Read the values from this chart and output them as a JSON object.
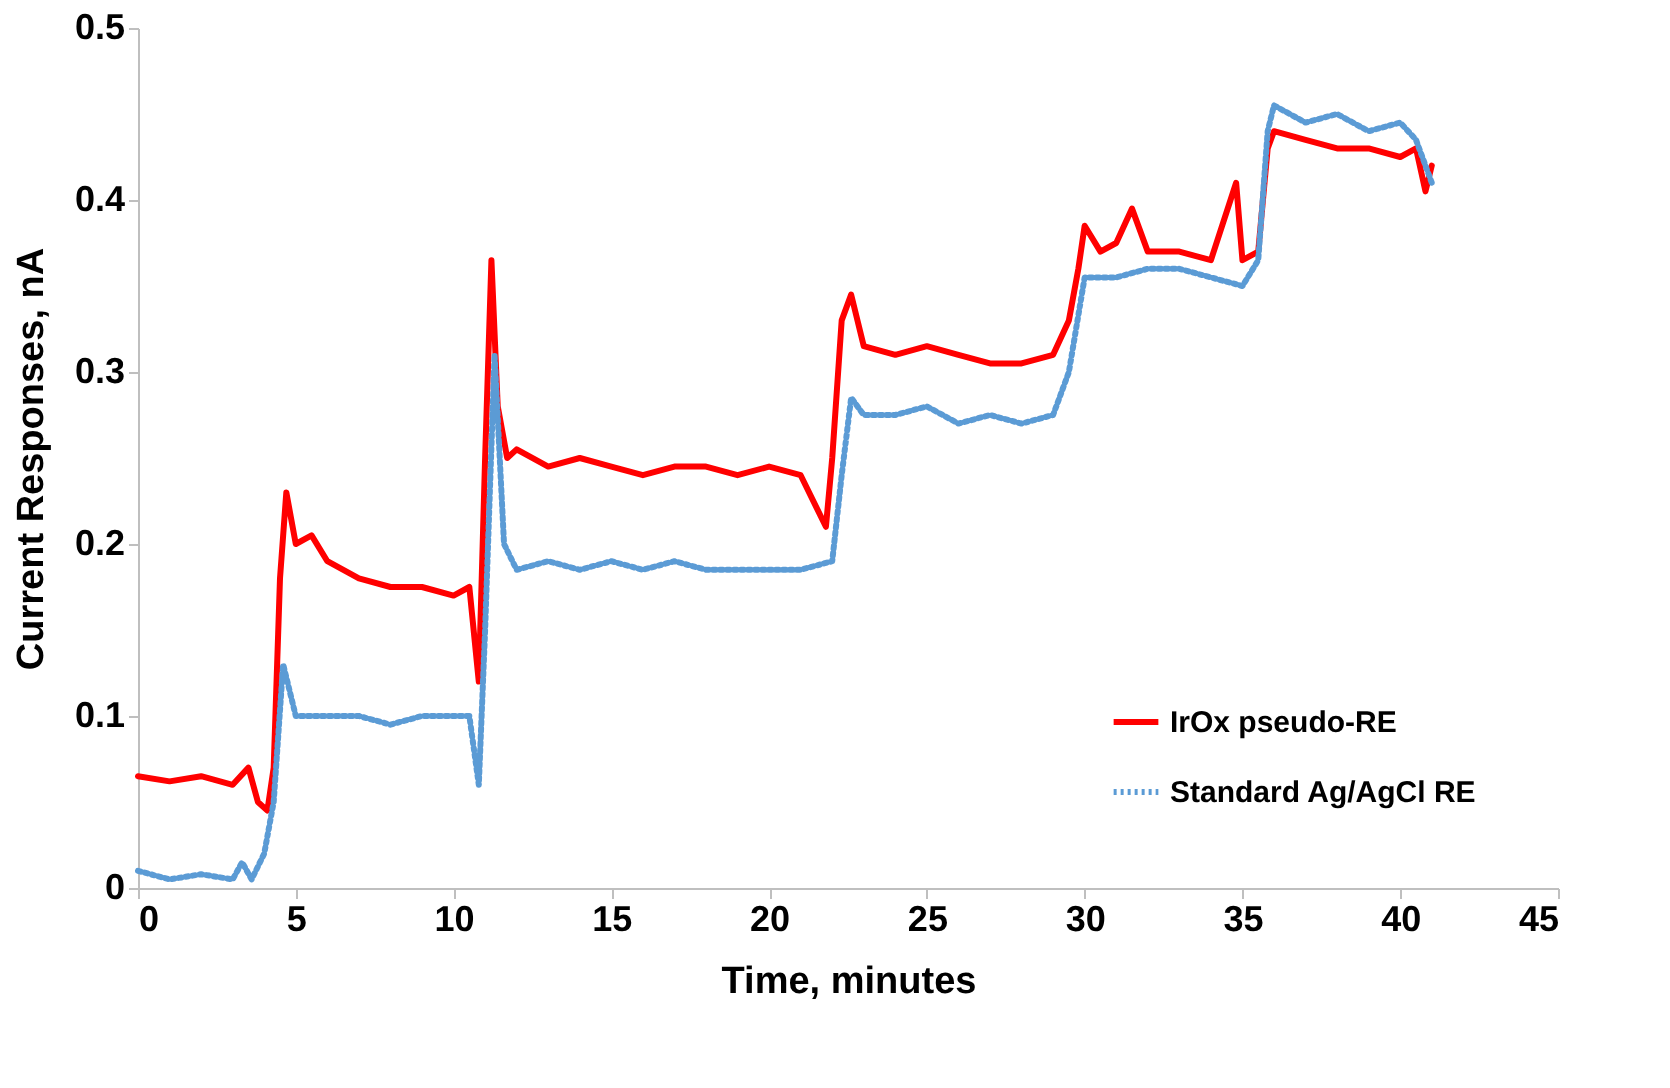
{
  "chart_data": {
    "type": "line",
    "xlabel": "Time, minutes",
    "ylabel": "Current Responses, nA",
    "xlim": [
      0,
      45
    ],
    "xticks": [
      0,
      5,
      10,
      15,
      20,
      25,
      30,
      35,
      40,
      45
    ],
    "ylim": [
      0,
      0.5
    ],
    "yticks": [
      0,
      0.1,
      0.2,
      0.3,
      0.4,
      0.5
    ],
    "grid": false,
    "legend": "bottom right",
    "marker": "none",
    "series": [
      {
        "name": "IrOx pseudo-RE",
        "color": "#ff0000",
        "line_style": "solid",
        "x": [
          0,
          1,
          2,
          3,
          3.5,
          3.8,
          4.1,
          4.3,
          4.5,
          4.7,
          5,
          5.5,
          6,
          7,
          8,
          9,
          10,
          10.5,
          10.8,
          11,
          11.2,
          11.4,
          11.7,
          12,
          13,
          14,
          15,
          16,
          17,
          18,
          19,
          20,
          21,
          21.8,
          22,
          22.3,
          22.6,
          23,
          24,
          25,
          26,
          27,
          28,
          29,
          29.5,
          29.8,
          30,
          30.5,
          31,
          31.5,
          32,
          33,
          34,
          34.8,
          35,
          35.5,
          35.8,
          36,
          37,
          38,
          39,
          40,
          40.5,
          40.8,
          41
        ],
        "values": [
          0.065,
          0.062,
          0.065,
          0.06,
          0.07,
          0.05,
          0.045,
          0.07,
          0.18,
          0.23,
          0.2,
          0.205,
          0.19,
          0.18,
          0.175,
          0.175,
          0.17,
          0.175,
          0.12,
          0.25,
          0.365,
          0.28,
          0.25,
          0.255,
          0.245,
          0.25,
          0.245,
          0.24,
          0.245,
          0.245,
          0.24,
          0.245,
          0.24,
          0.21,
          0.25,
          0.33,
          0.345,
          0.315,
          0.31,
          0.315,
          0.31,
          0.305,
          0.305,
          0.31,
          0.33,
          0.36,
          0.385,
          0.37,
          0.375,
          0.395,
          0.37,
          0.37,
          0.365,
          0.41,
          0.365,
          0.37,
          0.43,
          0.44,
          0.435,
          0.43,
          0.43,
          0.425,
          0.43,
          0.405,
          0.42
        ]
      },
      {
        "name": "Standard Ag/AgCl RE",
        "color": "#5b9bd5",
        "line_style": "dotted",
        "x": [
          0,
          1,
          2,
          3,
          3.3,
          3.6,
          4,
          4.3,
          4.6,
          5,
          6,
          7,
          8,
          9,
          10,
          10.5,
          10.8,
          11,
          11.3,
          11.6,
          12,
          13,
          14,
          15,
          16,
          17,
          18,
          19,
          20,
          21,
          22,
          22.3,
          22.6,
          23,
          24,
          25,
          26,
          27,
          28,
          29,
          29.5,
          30,
          31,
          32,
          33,
          34,
          35,
          35.5,
          35.8,
          36,
          37,
          38,
          39,
          40,
          40.5,
          41
        ],
        "values": [
          0.01,
          0.005,
          0.008,
          0.005,
          0.015,
          0.005,
          0.02,
          0.05,
          0.13,
          0.1,
          0.1,
          0.1,
          0.095,
          0.1,
          0.1,
          0.1,
          0.06,
          0.15,
          0.31,
          0.2,
          0.185,
          0.19,
          0.185,
          0.19,
          0.185,
          0.19,
          0.185,
          0.185,
          0.185,
          0.185,
          0.19,
          0.24,
          0.285,
          0.275,
          0.275,
          0.28,
          0.27,
          0.275,
          0.27,
          0.275,
          0.3,
          0.355,
          0.355,
          0.36,
          0.36,
          0.355,
          0.35,
          0.365,
          0.44,
          0.455,
          0.445,
          0.45,
          0.44,
          0.445,
          0.435,
          0.41
        ]
      }
    ]
  }
}
